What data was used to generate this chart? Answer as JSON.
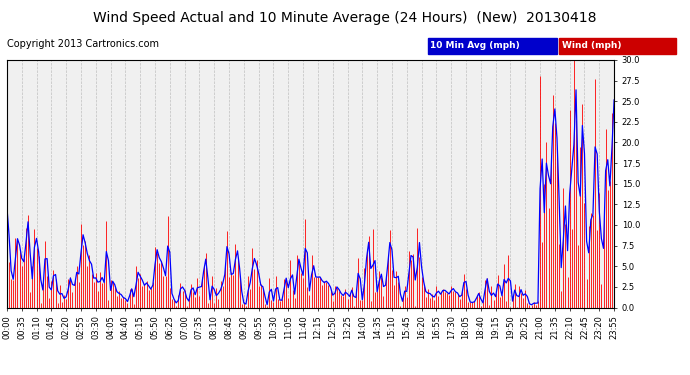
{
  "title": "Wind Speed Actual and 10 Minute Average (24 Hours)  (New)  20130418",
  "copyright": "Copyright 2013 Cartronics.com",
  "legend_avg_label": "10 Min Avg (mph)",
  "legend_wind_label": "Wind (mph)",
  "legend_avg_bg": "#0000cc",
  "legend_wind_bg": "#cc0000",
  "legend_text_color": "#ffffff",
  "ylim": [
    0.0,
    30.0
  ],
  "yticks": [
    0.0,
    2.5,
    5.0,
    7.5,
    10.0,
    12.5,
    15.0,
    17.5,
    20.0,
    22.5,
    25.0,
    27.5,
    30.0
  ],
  "bg_color": "#ffffff",
  "plot_bg_color": "#f0f0f0",
  "grid_color": "#bbbbbb",
  "title_fontsize": 10,
  "copyright_fontsize": 7,
  "tick_fontsize": 6,
  "wind_color": "#ff0000",
  "avg_color": "#0000ff",
  "wind_linewidth": 0.6,
  "avg_linewidth": 0.9
}
